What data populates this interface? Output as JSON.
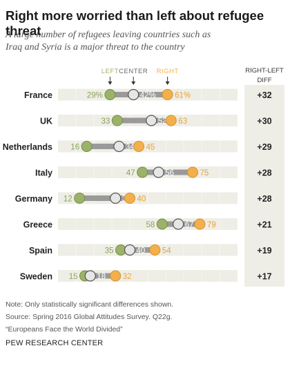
{
  "title": "Right more worried than left about refugee threat",
  "subtitle_lines": [
    "A large number of refugees leaving countries such as",
    "Iraq and Syria is a major threat to the country"
  ],
  "diff_header_lines": [
    "RIGHT-LEFT",
    "DIFF"
  ],
  "footer": {
    "note": "Note: Only statistically significant differences shown.",
    "source": "Source: Spring 2016 Global Attitudes Survey. Q22g.",
    "report": "“Europeans Face the World Divided”",
    "org": "PEW RESEARCH CENTER"
  },
  "colors": {
    "left": "#9cb26a",
    "center": "#c9c9c9",
    "right": "#f2b04c",
    "range_bar": "#9a9a9a",
    "track": "#eeede6"
  },
  "chart_data": {
    "type": "dot",
    "legend": [
      "LEFT",
      "CENTER",
      "RIGHT"
    ],
    "categories": [
      "France",
      "UK",
      "Netherlands",
      "Italy",
      "Germany",
      "Greece",
      "Spain",
      "Sweden"
    ],
    "series": [
      {
        "name": "LEFT",
        "values": [
          29,
          33,
          16,
          47,
          12,
          58,
          35,
          15
        ]
      },
      {
        "name": "CENTER",
        "values": [
          42,
          52,
          34,
          56,
          32,
          67,
          40,
          18
        ]
      },
      {
        "name": "RIGHT",
        "values": [
          61,
          63,
          45,
          75,
          40,
          79,
          54,
          32
        ]
      }
    ],
    "value_labels": {
      "left": [
        "29%",
        "33",
        "16",
        "47",
        "12",
        "58",
        "35",
        "15"
      ],
      "center": [
        "42%",
        "52",
        "34",
        "56",
        "32",
        "67",
        "40",
        "18"
      ],
      "right": [
        "61%",
        "63",
        "45",
        "75",
        "40",
        "79",
        "54",
        "32"
      ]
    },
    "diff": [
      "+32",
      "+30",
      "+29",
      "+28",
      "+28",
      "+21",
      "+19",
      "+17"
    ],
    "xlim": [
      0,
      100
    ]
  }
}
